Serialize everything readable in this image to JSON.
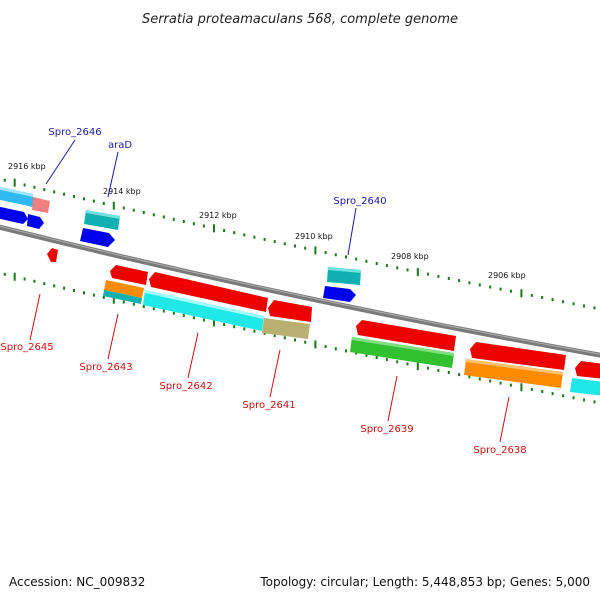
{
  "title": "Serratia proteamaculans 568, complete genome",
  "accession": "Accession: NC_009832",
  "topology": "Topology: circular; Length: 5,448,853 bp; Genes: 5,000",
  "colors": {
    "backbone": "#808080",
    "tick": "#1a7a1a",
    "forward_label": "#1a1aa0",
    "reverse_label": "#cc1111",
    "red": "#ee0000",
    "cyan": "#20e8e8",
    "teal": "#10b0b0",
    "blue": "#0000ee",
    "pink": "#f08080",
    "orange": "#ff8c00",
    "olive": "#b8b070",
    "green": "#30c030",
    "sky": "#30b8f0"
  },
  "coordinates": {
    "labels": [
      "2916 kbp",
      "2914 kbp",
      "2912 kbp",
      "2910 kbp",
      "2908 kbp",
      "2906 kbp"
    ]
  },
  "labels": {
    "forward": [
      "Spro_2646",
      "araD",
      "Spro_2640"
    ],
    "reverse": [
      "Spro_2645",
      "Spro_2643",
      "Spro_2642",
      "Spro_2641",
      "Spro_2639",
      "Spro_2638"
    ]
  }
}
